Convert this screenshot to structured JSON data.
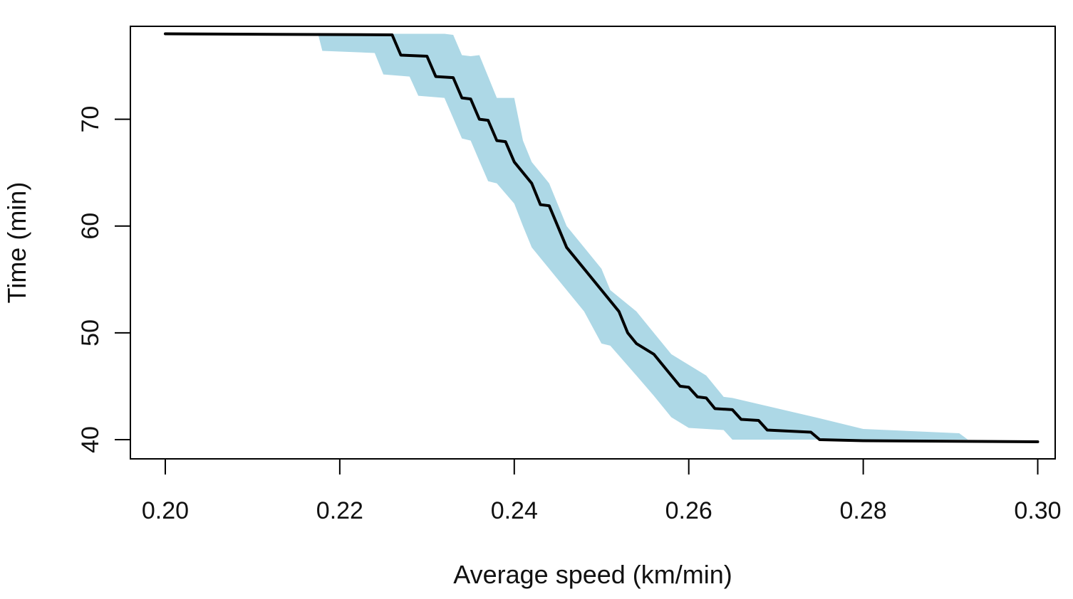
{
  "chart_data": {
    "type": "line",
    "title": "",
    "xlabel": "Average speed (km/min)",
    "ylabel": "Time (min)",
    "xlim": [
      0.196,
      0.302
    ],
    "ylim": [
      38.2,
      78.7
    ],
    "x_ticks": [
      0.2,
      0.22,
      0.24,
      0.26,
      0.28,
      0.3
    ],
    "x_tick_labels": [
      "0.20",
      "0.22",
      "0.24",
      "0.26",
      "0.28",
      "0.30"
    ],
    "y_ticks": [
      40,
      50,
      60,
      70
    ],
    "y_tick_labels": [
      "40",
      "50",
      "60",
      "70"
    ],
    "grid": false,
    "colors": {
      "line": "#000000",
      "band": "#add8e6",
      "axis": "#000000"
    },
    "series": [
      {
        "name": "estimate",
        "x": [
          0.2,
          0.226,
          0.227,
          0.23,
          0.231,
          0.233,
          0.234,
          0.235,
          0.236,
          0.237,
          0.238,
          0.239,
          0.24,
          0.242,
          0.243,
          0.244,
          0.246,
          0.248,
          0.25,
          0.252,
          0.253,
          0.254,
          0.256,
          0.258,
          0.259,
          0.26,
          0.261,
          0.262,
          0.263,
          0.265,
          0.266,
          0.268,
          0.269,
          0.274,
          0.275,
          0.28,
          0.3
        ],
        "values": [
          78.0,
          77.9,
          76.0,
          75.9,
          74.0,
          73.9,
          72.0,
          71.9,
          70.0,
          69.9,
          68.0,
          67.9,
          66.0,
          64.0,
          62.0,
          61.9,
          58.0,
          56.0,
          54.0,
          52.0,
          50.0,
          49.0,
          48.0,
          46.0,
          45.0,
          44.9,
          44.0,
          43.9,
          42.9,
          42.8,
          41.9,
          41.8,
          40.9,
          40.7,
          40.0,
          39.9,
          39.8
        ]
      }
    ],
    "band": {
      "name": "confidence band",
      "x": [
        0.2175,
        0.218,
        0.224,
        0.225,
        0.228,
        0.229,
        0.232,
        0.233,
        0.234,
        0.235,
        0.236,
        0.237,
        0.238,
        0.24,
        0.241,
        0.242,
        0.244,
        0.246,
        0.248,
        0.25,
        0.251,
        0.254,
        0.256,
        0.258,
        0.26,
        0.262,
        0.264,
        0.265,
        0.275,
        0.28,
        0.291,
        0.292
      ],
      "upper": [
        78.0,
        78.0,
        78.0,
        78.0,
        78.0,
        78.0,
        78.0,
        77.9,
        76.0,
        75.9,
        76.0,
        74.0,
        72.0,
        72.0,
        68.0,
        66.0,
        64.0,
        60.0,
        58.0,
        56.0,
        54.0,
        52.0,
        50.0,
        48.0,
        47.0,
        46.0,
        44.0,
        43.9,
        42.0,
        41.0,
        40.6,
        40.0
      ],
      "lower": [
        78.0,
        76.4,
        76.2,
        74.2,
        74.0,
        72.2,
        72.0,
        70.1,
        68.2,
        68.0,
        66.1,
        64.2,
        64.0,
        62.1,
        60.0,
        58.0,
        56.0,
        54.0,
        52.0,
        49.0,
        48.8,
        46.0,
        44.1,
        42.1,
        41.1,
        41.0,
        40.9,
        40.0,
        40.0,
        40.0,
        40.0,
        40.0
      ]
    }
  }
}
